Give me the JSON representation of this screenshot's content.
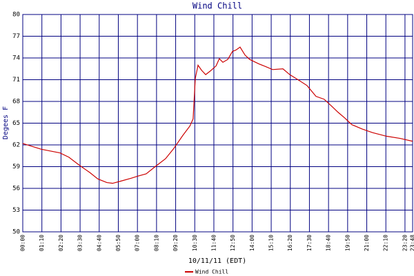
{
  "chart_data": {
    "type": "line",
    "title": "Wind Chill",
    "x_label": "10/11/11 (EDT)",
    "y_label": "Degees F",
    "xlim": [
      0,
      1428
    ],
    "ylim": [
      50,
      80
    ],
    "xticks": [
      {
        "value": 0,
        "label": "00:00"
      },
      {
        "value": 70,
        "label": "01:10"
      },
      {
        "value": 140,
        "label": "02:20"
      },
      {
        "value": 210,
        "label": "03:30"
      },
      {
        "value": 280,
        "label": "04:40"
      },
      {
        "value": 350,
        "label": "05:50"
      },
      {
        "value": 420,
        "label": "07:00"
      },
      {
        "value": 490,
        "label": "08:10"
      },
      {
        "value": 560,
        "label": "09:20"
      },
      {
        "value": 630,
        "label": "10:30"
      },
      {
        "value": 700,
        "label": "11:40"
      },
      {
        "value": 770,
        "label": "12:50"
      },
      {
        "value": 840,
        "label": "14:00"
      },
      {
        "value": 910,
        "label": "15:10"
      },
      {
        "value": 980,
        "label": "16:20"
      },
      {
        "value": 1050,
        "label": "17:30"
      },
      {
        "value": 1120,
        "label": "18:40"
      },
      {
        "value": 1190,
        "label": "19:50"
      },
      {
        "value": 1260,
        "label": "21:00"
      },
      {
        "value": 1330,
        "label": "22:10"
      },
      {
        "value": 1400,
        "label": "23:20"
      },
      {
        "value": 1428,
        "label": "23:48"
      }
    ],
    "yticks": [
      50,
      53,
      56,
      59,
      62,
      65,
      68,
      71,
      74,
      77,
      80
    ],
    "grid": true,
    "series": [
      {
        "name": "Wind Chill",
        "color": "#cc0000",
        "x": [
          0,
          68,
          136,
          169,
          207,
          245,
          275,
          308,
          329,
          359,
          397,
          422,
          452,
          485,
          523,
          553,
          586,
          612,
          624,
          632,
          642,
          655,
          670,
          687,
          708,
          720,
          733,
          751,
          768,
          781,
          796,
          814,
          831,
          864,
          890,
          915,
          953,
          978,
          1008,
          1041,
          1074,
          1104,
          1130,
          1155,
          1180,
          1205,
          1243,
          1281,
          1332,
          1382,
          1428
        ],
        "values": [
          62.2,
          61.4,
          60.9,
          60.3,
          59.2,
          58.2,
          57.3,
          56.8,
          56.7,
          57.0,
          57.4,
          57.7,
          58.0,
          59.0,
          60.1,
          61.5,
          63.3,
          64.6,
          65.6,
          71.2,
          73.0,
          72.3,
          71.7,
          72.2,
          72.9,
          73.9,
          73.4,
          73.8,
          74.9,
          75.1,
          75.5,
          74.4,
          73.8,
          73.2,
          72.8,
          72.4,
          72.5,
          71.7,
          71.0,
          70.2,
          68.7,
          68.3,
          67.4,
          66.5,
          65.7,
          64.8,
          64.2,
          63.7,
          63.2,
          62.9,
          62.5
        ]
      }
    ]
  }
}
